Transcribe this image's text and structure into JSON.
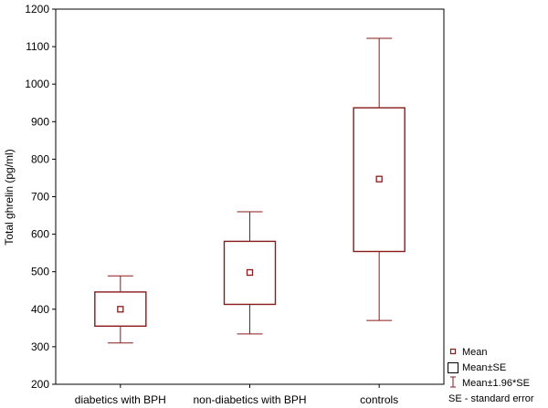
{
  "chart_data": {
    "type": "box",
    "title": "",
    "xlabel": "",
    "ylabel": "Total ghrelin (pg/ml)",
    "ylim": [
      200,
      1200
    ],
    "yticks": [
      200,
      300,
      400,
      500,
      600,
      700,
      800,
      900,
      1000,
      1100,
      1200
    ],
    "grid": false,
    "legend_position": "bottom-right",
    "color": "#8b1a1a",
    "categories": [
      "diabetics with BPH",
      "non-diabetics with BPH",
      "controls"
    ],
    "mean": [
      400,
      498,
      747
    ],
    "se_low": [
      355,
      413,
      554
    ],
    "se_high": [
      446,
      581,
      937
    ],
    "whisker_low": [
      310,
      334,
      370
    ],
    "whisker_high": [
      489,
      660,
      1122
    ],
    "legend": [
      "Mean",
      "Mean±SE",
      "Mean±1.96*SE",
      "SE - standard error"
    ]
  }
}
